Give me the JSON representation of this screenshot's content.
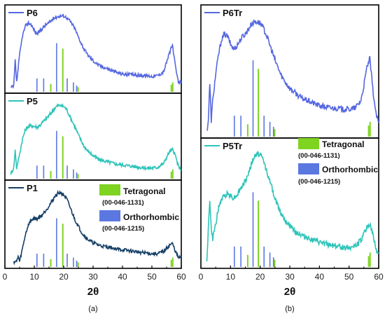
{
  "colors": {
    "P6": "#5567e0",
    "P5": "#2ec4b9",
    "P1": "#163f66",
    "P6Tr": "#5567e0",
    "P5Tr": "#2ec4b9",
    "tetragonal": "#7fd321",
    "orthorhombic": "#5b78e0",
    "frame": "#000000"
  },
  "chart_data": [
    {
      "type": "line",
      "panel_tag": "(a)",
      "xlabel": "2θ",
      "xlim": [
        0,
        60
      ],
      "xticks": [
        "0",
        "10",
        "20",
        "30",
        "40",
        "50",
        "60"
      ],
      "legend": {
        "placement": "inside-bottom-panel-right",
        "entries": [
          {
            "name": "Tetragonal",
            "code": "(00-046-1131)",
            "color": "tetragonal"
          },
          {
            "name": "Orthorhombic",
            "code": "(00-046-1215)",
            "color": "orthorhombic"
          }
        ]
      },
      "series": [
        {
          "name": "P6",
          "color": "P6",
          "x": [
            2,
            3,
            3.5,
            4,
            5,
            6,
            7,
            8,
            9,
            10,
            11,
            12,
            13,
            14,
            15,
            16,
            17,
            18,
            19,
            20,
            21,
            22,
            23,
            24,
            25,
            26,
            27,
            28,
            30,
            32,
            34,
            36,
            38,
            40,
            42,
            44,
            46,
            48,
            50,
            52,
            54,
            55,
            56,
            57,
            58,
            59,
            60
          ],
          "y": [
            0.03,
            0.05,
            0.38,
            0.1,
            0.45,
            0.7,
            0.82,
            0.86,
            0.84,
            0.76,
            0.72,
            0.76,
            0.8,
            0.84,
            0.86,
            0.9,
            0.93,
            0.94,
            0.95,
            0.95,
            0.93,
            0.89,
            0.84,
            0.77,
            0.68,
            0.6,
            0.52,
            0.46,
            0.38,
            0.32,
            0.29,
            0.26,
            0.23,
            0.21,
            0.2,
            0.2,
            0.19,
            0.19,
            0.18,
            0.19,
            0.24,
            0.36,
            0.48,
            0.58,
            0.3,
            0.1,
            0.12
          ]
        },
        {
          "name": "P5",
          "color": "P5",
          "x": [
            2,
            3,
            3.5,
            4,
            5,
            6,
            7,
            8,
            9,
            10,
            11,
            12,
            13,
            14,
            15,
            16,
            17,
            18,
            19,
            20,
            21,
            22,
            23,
            24,
            25,
            26,
            27,
            28,
            30,
            32,
            34,
            36,
            38,
            40,
            42,
            44,
            46,
            48,
            50,
            52,
            54,
            55,
            56,
            57,
            58,
            59,
            60
          ],
          "y": [
            0.05,
            0.12,
            0.35,
            0.12,
            0.3,
            0.5,
            0.62,
            0.66,
            0.67,
            0.66,
            0.65,
            0.68,
            0.72,
            0.76,
            0.8,
            0.85,
            0.9,
            0.93,
            0.93,
            0.92,
            0.88,
            0.8,
            0.72,
            0.64,
            0.55,
            0.47,
            0.4,
            0.35,
            0.28,
            0.23,
            0.21,
            0.19,
            0.17,
            0.16,
            0.15,
            0.14,
            0.13,
            0.12,
            0.12,
            0.13,
            0.18,
            0.26,
            0.33,
            0.36,
            0.28,
            0.14,
            0.1
          ]
        },
        {
          "name": "P1",
          "color": "P1",
          "x": [
            3,
            4,
            4.5,
            5,
            6,
            7,
            8,
            9,
            10,
            11,
            12,
            13,
            14,
            15,
            16,
            17,
            18,
            19,
            20,
            21,
            22,
            23,
            24,
            25,
            26,
            27,
            28,
            30,
            32,
            34,
            36,
            38,
            40,
            42,
            44,
            46,
            48,
            50,
            52,
            54,
            55,
            56,
            57,
            58,
            59,
            60
          ],
          "y": [
            0.05,
            0.05,
            0.12,
            0.05,
            0.22,
            0.4,
            0.52,
            0.58,
            0.6,
            0.6,
            0.62,
            0.66,
            0.71,
            0.76,
            0.82,
            0.88,
            0.92,
            0.93,
            0.9,
            0.85,
            0.76,
            0.66,
            0.57,
            0.5,
            0.43,
            0.38,
            0.34,
            0.29,
            0.26,
            0.24,
            0.23,
            0.21,
            0.2,
            0.19,
            0.18,
            0.17,
            0.16,
            0.15,
            0.15,
            0.18,
            0.22,
            0.26,
            0.28,
            0.18,
            0.1,
            0.1
          ]
        }
      ],
      "reference_lines": {
        "orthorhombic": {
          "x": [
            10.9,
            13.2,
            17.6,
            21.2,
            23.3,
            24.4
          ],
          "h": [
            0.17,
            0.17,
            0.62,
            0.17,
            0.12,
            0.08
          ]
        },
        "tetragonal": {
          "x": [
            15.6,
            19.7,
            24.9,
            56.6,
            57.1
          ],
          "h": [
            0.1,
            0.55,
            0.06,
            0.09,
            0.12
          ]
        }
      }
    },
    {
      "type": "line",
      "panel_tag": "(b)",
      "xlabel": "2θ",
      "xlim": [
        0,
        60
      ],
      "xticks": [
        "0",
        "10",
        "20",
        "30",
        "40",
        "50",
        "60"
      ],
      "legend": {
        "placement": "inside-bottom-panel-right",
        "entries": [
          {
            "name": "Tetragonal",
            "code": "(00-046-1131)",
            "color": "tetragonal"
          },
          {
            "name": "Orthorhombic",
            "code": "(00-046-1215)",
            "color": "orthorhombic"
          }
        ]
      },
      "series": [
        {
          "name": "P6Tr",
          "color": "P6Tr",
          "x": [
            2,
            2.5,
            3,
            3.5,
            4,
            5,
            6,
            7,
            8,
            9,
            10,
            11,
            12,
            13,
            14,
            15,
            16,
            17,
            18,
            19,
            20,
            21,
            22,
            23,
            24,
            25,
            26,
            27,
            28,
            30,
            32,
            34,
            36,
            38,
            40,
            42,
            44,
            46,
            48,
            50,
            52,
            54,
            55,
            56,
            57,
            58,
            59,
            60
          ],
          "y": [
            0.03,
            0.12,
            0.42,
            0.12,
            0.28,
            0.5,
            0.66,
            0.78,
            0.82,
            0.8,
            0.74,
            0.7,
            0.72,
            0.76,
            0.8,
            0.82,
            0.86,
            0.9,
            0.92,
            0.92,
            0.91,
            0.87,
            0.82,
            0.75,
            0.68,
            0.61,
            0.55,
            0.49,
            0.45,
            0.38,
            0.34,
            0.3,
            0.28,
            0.26,
            0.24,
            0.23,
            0.22,
            0.22,
            0.21,
            0.21,
            0.22,
            0.28,
            0.4,
            0.55,
            0.62,
            0.38,
            0.18,
            0.1
          ]
        },
        {
          "name": "P5Tr",
          "color": "P5Tr",
          "x": [
            2,
            2.5,
            3,
            3.5,
            4,
            5,
            6,
            7,
            8,
            9,
            10,
            11,
            12,
            13,
            14,
            15,
            16,
            17,
            18,
            19,
            20,
            21,
            22,
            23,
            24,
            25,
            26,
            27,
            28,
            30,
            32,
            34,
            36,
            38,
            40,
            42,
            44,
            46,
            48,
            50,
            52,
            54,
            55,
            56,
            57,
            58,
            59,
            60
          ],
          "y": [
            0.05,
            0.3,
            0.55,
            0.3,
            0.22,
            0.35,
            0.48,
            0.55,
            0.58,
            0.6,
            0.58,
            0.56,
            0.58,
            0.62,
            0.66,
            0.7,
            0.76,
            0.84,
            0.9,
            0.93,
            0.92,
            0.88,
            0.8,
            0.72,
            0.64,
            0.56,
            0.49,
            0.44,
            0.4,
            0.33,
            0.28,
            0.25,
            0.23,
            0.21,
            0.19,
            0.18,
            0.17,
            0.16,
            0.15,
            0.15,
            0.16,
            0.21,
            0.26,
            0.32,
            0.34,
            0.26,
            0.14,
            0.1
          ]
        }
      ],
      "reference_lines": {
        "orthorhombic": {
          "x": [
            11.3,
            13.5,
            17.6,
            21.3,
            23.3,
            24.5
          ],
          "h": [
            0.17,
            0.17,
            0.62,
            0.17,
            0.12,
            0.08
          ]
        },
        "tetragonal": {
          "x": [
            15.8,
            19.4,
            24.9,
            56.6,
            57.1
          ],
          "h": [
            0.1,
            0.55,
            0.06,
            0.09,
            0.12
          ]
        }
      }
    }
  ]
}
